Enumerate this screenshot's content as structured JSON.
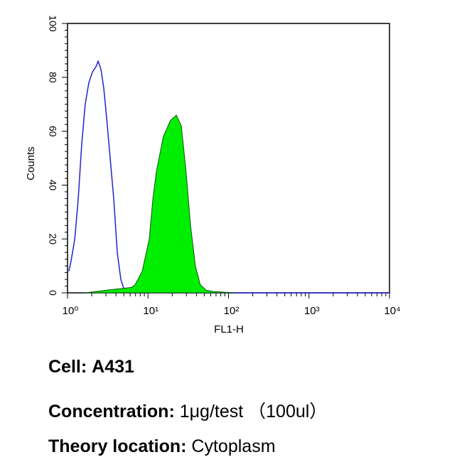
{
  "chart_data": {
    "type": "area",
    "xlabel": "FL1-H",
    "ylabel": "Counts",
    "xscale": "log",
    "xlim": [
      1,
      10000
    ],
    "ylim": [
      0,
      100
    ],
    "xticks": [
      {
        "value": 1,
        "label": "10⁰"
      },
      {
        "value": 10,
        "label": "10¹"
      },
      {
        "value": 100,
        "label": "10²"
      },
      {
        "value": 1000,
        "label": "10³"
      },
      {
        "value": 10000,
        "label": "10⁴"
      }
    ],
    "yticks": [
      0,
      20,
      40,
      60,
      80,
      100
    ],
    "series": [
      {
        "color": "#2222cc",
        "filled": false,
        "x": [
          1.04,
          1.11,
          1.23,
          1.36,
          1.5,
          1.66,
          1.84,
          2.04,
          2.26,
          2.4,
          2.6,
          2.82,
          3.06,
          3.39,
          3.75,
          4.15,
          4.59,
          5.08,
          5.63,
          10000
        ],
        "values": [
          8,
          12,
          20,
          35,
          55,
          70,
          78,
          82,
          84,
          86,
          83,
          76,
          65,
          50,
          35,
          15,
          5,
          1,
          0,
          0
        ]
      },
      {
        "color": "#00ee00",
        "filled": true,
        "x": [
          1.66,
          3.06,
          6.23,
          6.9,
          8.46,
          10.37,
          11.5,
          12.7,
          15.5,
          19.0,
          22.5,
          25.9,
          29.7,
          33.8,
          38.8,
          44.6,
          52.8,
          64.5,
          118
        ],
        "values": [
          0,
          1,
          2,
          3,
          8,
          20,
          35,
          45,
          58,
          64,
          66,
          62,
          45,
          25,
          10,
          3,
          1,
          0.5,
          0
        ]
      }
    ]
  },
  "details": [
    {
      "label": "Cell:",
      "value": "A431"
    },
    {
      "label": "Concentration:",
      "value": "1μg/test （100ul）"
    },
    {
      "label": "Theory location:",
      "value": "Cytoplasm"
    }
  ]
}
